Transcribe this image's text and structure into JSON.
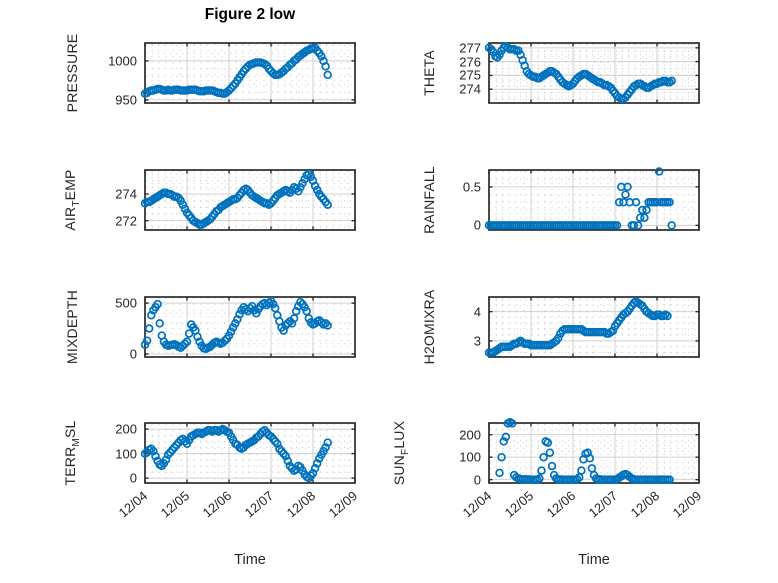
{
  "figure": {
    "title": "Figure 2 low"
  },
  "x_axis": {
    "label": "Time",
    "xlim": [
      0,
      5
    ],
    "tick_values": [
      0,
      1,
      2,
      3,
      4,
      5
    ],
    "tick_labels": [
      "12/04",
      "12/05",
      "12/06",
      "12/07",
      "12/08",
      "12/09"
    ]
  },
  "colors": {
    "marker": "#0072BD",
    "axis": "#2b2b2b",
    "text": "#262626",
    "grid": "#d0d0d0",
    "minor_grid": "#c8c8c8",
    "background": "#ffffff"
  },
  "chart_data": [
    {
      "name": "PRESSURE",
      "type": "scatter",
      "row": 0,
      "col": 0,
      "ylabel_parts": [
        [
          "PRESSURE",
          0
        ]
      ],
      "ylim": [
        946,
        1023
      ],
      "ytick_values": [
        950,
        1000
      ],
      "ytick_labels": [
        "950",
        "1000"
      ],
      "minor_y_step": 10,
      "t0": 0,
      "dt": 0.05,
      "y": [
        958,
        959,
        961,
        962,
        962,
        963,
        964,
        964,
        963,
        962,
        962,
        963,
        962,
        962,
        963,
        963,
        963,
        962,
        962,
        962,
        962,
        963,
        963,
        963,
        963,
        962,
        961,
        961,
        961,
        962,
        962,
        962,
        962,
        961,
        960,
        959,
        959,
        958,
        958,
        960,
        962,
        965,
        968,
        971,
        975,
        979,
        983,
        987,
        990,
        993,
        995,
        996,
        997,
        998,
        998,
        998,
        997,
        996,
        994,
        990,
        987,
        984,
        982,
        982,
        983,
        985,
        987,
        990,
        992,
        995,
        997,
        1000,
        1002,
        1005,
        1007,
        1009,
        1011,
        1013,
        1014,
        1016,
        1016,
        1017,
        1013,
        1010,
        1006,
        1000,
        993,
        982
      ]
    },
    {
      "name": "THETA",
      "type": "scatter",
      "row": 0,
      "col": 1,
      "ylabel_parts": [
        [
          "THETA",
          0
        ]
      ],
      "ylim": [
        273.0,
        277.35
      ],
      "ytick_values": [
        274,
        275,
        276,
        277
      ],
      "ytick_labels": [
        "274",
        "275",
        "276",
        "277"
      ],
      "minor_y_step": 0.25,
      "t0": 0,
      "dt": 0.05,
      "y": [
        277.0,
        276.9,
        276.7,
        276.4,
        276.3,
        276.5,
        276.8,
        277.0,
        277.1,
        277.0,
        276.9,
        276.9,
        276.9,
        276.8,
        276.8,
        276.5,
        276.1,
        275.7,
        275.3,
        275.1,
        275.0,
        274.9,
        274.9,
        274.8,
        274.8,
        274.9,
        275.0,
        275.1,
        275.2,
        275.3,
        275.3,
        275.2,
        275.1,
        274.9,
        274.7,
        274.5,
        274.4,
        274.3,
        274.2,
        274.3,
        274.4,
        274.6,
        274.8,
        274.9,
        275.0,
        275.1,
        275.1,
        275.0,
        274.9,
        274.8,
        274.7,
        274.6,
        274.5,
        274.5,
        274.4,
        274.3,
        274.3,
        274.2,
        274.1,
        273.9,
        273.7,
        273.5,
        273.4,
        273.3,
        273.3,
        273.4,
        273.6,
        273.8,
        274.0,
        274.2,
        274.3,
        274.4,
        274.4,
        274.3,
        274.2,
        274.1,
        274.1,
        274.2,
        274.3,
        274.4,
        274.4,
        274.5,
        274.5,
        274.6,
        274.6,
        274.5,
        274.5,
        274.6
      ]
    },
    {
      "name": "AIR_TEMP",
      "type": "scatter",
      "row": 1,
      "col": 0,
      "ylabel_parts": [
        [
          "AIR",
          0
        ],
        [
          "T",
          1
        ],
        [
          "EMP",
          0
        ]
      ],
      "ylim": [
        271.3,
        275.8
      ],
      "ytick_values": [
        272,
        274
      ],
      "ytick_labels": [
        "272",
        "274"
      ],
      "minor_y_step": 0.5,
      "t0": 0,
      "dt": 0.05,
      "y": [
        273.3,
        273.4,
        273.4,
        273.5,
        273.6,
        273.7,
        273.8,
        273.9,
        274.0,
        274.1,
        274.1,
        274.0,
        274.0,
        273.9,
        273.8,
        273.8,
        273.7,
        273.5,
        273.2,
        272.9,
        272.6,
        272.4,
        272.2,
        272.0,
        271.9,
        271.8,
        271.7,
        271.7,
        271.8,
        271.9,
        272.0,
        272.1,
        272.3,
        272.5,
        272.7,
        272.8,
        273.0,
        273.1,
        273.2,
        273.3,
        273.4,
        273.5,
        273.6,
        273.6,
        273.7,
        273.9,
        274.1,
        274.3,
        274.4,
        274.3,
        274.1,
        273.9,
        273.8,
        273.7,
        273.6,
        273.5,
        273.4,
        273.3,
        273.3,
        273.2,
        273.3,
        273.5,
        273.7,
        273.9,
        274.0,
        274.1,
        274.2,
        274.3,
        274.2,
        274.1,
        274.3,
        274.5,
        274.4,
        274.2,
        274.5,
        274.8,
        275.1,
        275.4,
        275.5,
        275.3,
        275.0,
        274.6,
        274.3,
        274.0,
        273.8,
        273.6,
        273.4,
        273.2
      ]
    },
    {
      "name": "RAINFALL",
      "type": "scatter",
      "row": 1,
      "col": 1,
      "ylabel_parts": [
        [
          "RAINFALL",
          0
        ]
      ],
      "ylim": [
        -0.06,
        0.72
      ],
      "ytick_values": [
        0,
        0.5
      ],
      "ytick_labels": [
        "0",
        "0.5"
      ],
      "minor_y_step": 0.1,
      "t0": 0,
      "dt": 0.05,
      "y": [
        0,
        0,
        0,
        0,
        0,
        0,
        0,
        0,
        0,
        0,
        0,
        0,
        0,
        0,
        0,
        0,
        0,
        0,
        0,
        0,
        0,
        0,
        0,
        0,
        0,
        0,
        0,
        0,
        0,
        0,
        0,
        0,
        0,
        0,
        0,
        0,
        0,
        0,
        0,
        0,
        0,
        0,
        0,
        0,
        0,
        0,
        0,
        0,
        0,
        0,
        0,
        0,
        0,
        0,
        0,
        0,
        0,
        0,
        0,
        0,
        0,
        0,
        0.3,
        0.5,
        0.3,
        0.4,
        0.5,
        0.3,
        0,
        0,
        0.3,
        0,
        0.1,
        0.2,
        0.1,
        0.2,
        0.3,
        0.3,
        0.3,
        0.3,
        0.3,
        0.7,
        0.3,
        0.3,
        0.3,
        0.3,
        0.3,
        0
      ]
    },
    {
      "name": "MIXDEPTH",
      "type": "scatter",
      "row": 2,
      "col": 0,
      "ylabel_parts": [
        [
          "MIXDEPTH",
          0
        ]
      ],
      "ylim": [
        -30,
        560
      ],
      "ytick_values": [
        0,
        500
      ],
      "ytick_labels": [
        "0",
        "500"
      ],
      "minor_y_step": 100,
      "t0": 0,
      "dt": 0.05,
      "y": [
        90,
        130,
        250,
        380,
        430,
        460,
        490,
        300,
        180,
        120,
        90,
        80,
        85,
        90,
        95,
        85,
        70,
        60,
        80,
        100,
        120,
        200,
        290,
        260,
        230,
        170,
        120,
        80,
        55,
        50,
        60,
        70,
        90,
        110,
        120,
        110,
        100,
        110,
        130,
        150,
        180,
        220,
        260,
        300,
        340,
        390,
        430,
        460,
        440,
        420,
        450,
        470,
        430,
        400,
        440,
        470,
        490,
        500,
        480,
        500,
        520,
        490,
        450,
        380,
        320,
        260,
        230,
        280,
        300,
        320,
        300,
        350,
        420,
        470,
        510,
        490,
        460,
        420,
        350,
        310,
        290,
        300,
        320,
        330,
        310,
        290,
        300,
        280
      ]
    },
    {
      "name": "H2OMIXRA",
      "type": "scatter",
      "row": 2,
      "col": 1,
      "ylabel_parts": [
        [
          "H2OMIXRA",
          0
        ]
      ],
      "ylim": [
        2.45,
        4.5
      ],
      "ytick_values": [
        3,
        4
      ],
      "ytick_labels": [
        "3",
        "4"
      ],
      "minor_y_step": 0.2,
      "t0": 0,
      "dt": 0.05,
      "y": [
        2.6,
        2.6,
        2.6,
        2.65,
        2.7,
        2.75,
        2.8,
        2.8,
        2.8,
        2.8,
        2.8,
        2.85,
        2.9,
        2.9,
        2.95,
        3.0,
        2.95,
        2.9,
        2.9,
        2.9,
        2.85,
        2.85,
        2.85,
        2.85,
        2.85,
        2.85,
        2.85,
        2.85,
        2.85,
        2.85,
        2.9,
        2.95,
        3.0,
        3.1,
        3.25,
        3.35,
        3.4,
        3.4,
        3.4,
        3.4,
        3.4,
        3.4,
        3.4,
        3.4,
        3.4,
        3.35,
        3.3,
        3.3,
        3.3,
        3.3,
        3.3,
        3.3,
        3.3,
        3.3,
        3.3,
        3.3,
        3.25,
        3.25,
        3.3,
        3.35,
        3.5,
        3.6,
        3.7,
        3.8,
        3.9,
        3.95,
        4.0,
        4.1,
        4.2,
        4.3,
        4.35,
        4.3,
        4.25,
        4.2,
        4.1,
        4.0,
        3.95,
        3.9,
        3.85,
        3.85,
        3.9,
        3.9,
        3.85,
        3.85,
        3.9,
        3.85
      ]
    },
    {
      "name": "TERR_MSL",
      "type": "scatter",
      "row": 3,
      "col": 0,
      "ylabel_parts": [
        [
          "TERR",
          0
        ],
        [
          "M",
          1
        ],
        [
          "SL",
          0
        ]
      ],
      "ylim": [
        -20,
        225
      ],
      "ytick_values": [
        0,
        100,
        200
      ],
      "ytick_labels": [
        "0",
        "100",
        "200"
      ],
      "minor_y_step": 25,
      "t0": 0,
      "dt": 0.05,
      "y": [
        100,
        105,
        115,
        120,
        110,
        90,
        70,
        55,
        50,
        60,
        75,
        95,
        105,
        115,
        125,
        135,
        145,
        155,
        160,
        150,
        140,
        155,
        170,
        175,
        180,
        185,
        185,
        180,
        185,
        190,
        195,
        195,
        190,
        195,
        195,
        190,
        195,
        200,
        195,
        190,
        185,
        170,
        155,
        140,
        135,
        125,
        120,
        125,
        135,
        140,
        145,
        150,
        155,
        165,
        170,
        180,
        190,
        195,
        185,
        175,
        170,
        160,
        150,
        140,
        120,
        110,
        100,
        90,
        70,
        50,
        40,
        30,
        35,
        50,
        45,
        30,
        15,
        5,
        0,
        10,
        20,
        40,
        60,
        80,
        95,
        110,
        125,
        145
      ]
    },
    {
      "name": "SUN_FLUX",
      "type": "scatter",
      "row": 3,
      "col": 1,
      "ylabel_parts": [
        [
          "SUN",
          0
        ],
        [
          "F",
          1
        ],
        [
          "LUX",
          0
        ]
      ],
      "ylim": [
        -15,
        252
      ],
      "ytick_values": [
        0,
        100,
        200
      ],
      "ytick_labels": [
        "0",
        "100",
        "200"
      ],
      "minor_y_step": 25,
      "t0": 0.25,
      "dt": 0.05,
      "y": [
        30,
        100,
        170,
        190,
        250,
        255,
        250,
        20,
        10,
        5,
        3,
        2,
        2,
        1,
        1,
        0,
        0,
        0,
        0,
        5,
        40,
        100,
        170,
        165,
        120,
        60,
        20,
        5,
        2,
        1,
        0,
        0,
        0,
        0,
        0,
        0,
        0,
        2,
        10,
        40,
        90,
        115,
        120,
        95,
        50,
        20,
        5,
        2,
        1,
        0,
        0,
        0,
        0,
        0,
        0,
        0,
        2,
        8,
        15,
        22,
        25,
        20,
        12,
        5,
        2,
        0,
        0,
        0,
        0,
        0,
        0,
        0,
        0,
        0,
        0,
        0,
        0,
        0,
        0,
        0,
        0,
        0
      ]
    }
  ]
}
